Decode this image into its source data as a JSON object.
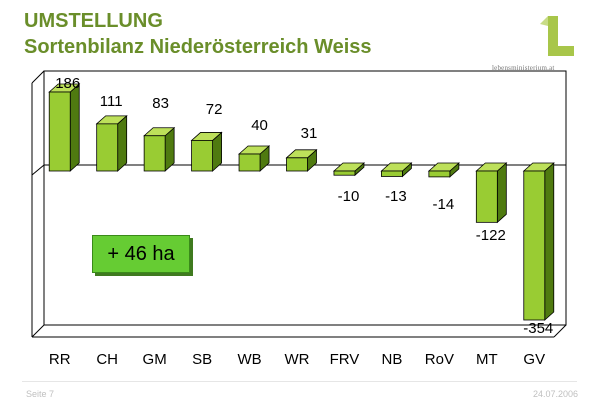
{
  "header": {
    "title": "UMSTELLUNG",
    "subtitle": "Sortenbilanz Niederösterreich Weiss"
  },
  "logo": {
    "letter_icon": "green-l-logo-icon",
    "text": "lebensministerium.at",
    "color": "#a8c64a"
  },
  "badge": {
    "text": "+ 46 ha",
    "color": "#66cc33"
  },
  "footer": {
    "left": "Seite 7",
    "right": "24.07.2006"
  },
  "chart_data": {
    "type": "bar",
    "categories": [
      "RR",
      "CH",
      "GM",
      "SB",
      "WB",
      "WR",
      "FRV",
      "NB",
      "RoV",
      "MT",
      "GV"
    ],
    "values": [
      186,
      111,
      83,
      72,
      40,
      31,
      -10,
      -13,
      -14,
      -122,
      -354
    ],
    "value_labels": [
      "186",
      "111",
      "83",
      "72",
      "40",
      "31",
      "-10",
      "-13",
      "-14",
      "-122",
      "-354"
    ],
    "ylim": [
      -354,
      186
    ],
    "grid": false,
    "legend": "none",
    "bar_color": "#99cc33",
    "bar_dark_color": "#4f7a10"
  }
}
